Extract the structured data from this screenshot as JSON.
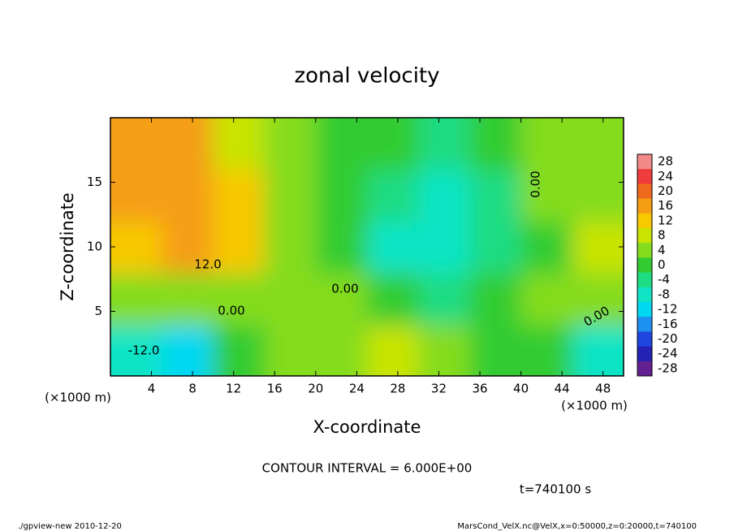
{
  "chart_data": {
    "type": "heatmap",
    "title": "zonal velocity",
    "x_label": "X-coordinate",
    "y_label": "Z-coordinate",
    "x_unit": "(×1000 m)",
    "x": [
      2.5,
      7.5,
      12.5,
      17.5,
      22.5,
      27.5,
      32.5,
      37.5,
      42.5,
      47.5
    ],
    "y": [
      2,
      6,
      10,
      14,
      18
    ],
    "z": [
      [
        -10,
        -14,
        0,
        2,
        2,
        8,
        2,
        0,
        -2,
        -8
      ],
      [
        2,
        4,
        4,
        2,
        2,
        -2,
        -4,
        0,
        2,
        2
      ],
      [
        12,
        16,
        12,
        4,
        0,
        -8,
        -8,
        -4,
        0,
        6
      ],
      [
        14,
        16,
        12,
        4,
        0,
        -6,
        -8,
        -4,
        2,
        4
      ],
      [
        14,
        14,
        8,
        4,
        0,
        -2,
        -4,
        -2,
        2,
        4
      ]
    ],
    "xlim": [
      0,
      50
    ],
    "ylim": [
      0,
      20
    ],
    "xticks": [
      4,
      8,
      12,
      16,
      20,
      24,
      28,
      32,
      36,
      40,
      44,
      48
    ],
    "yticks": [
      5,
      10,
      15
    ],
    "colorbar": {
      "levels": [
        28,
        24,
        20,
        16,
        12,
        8,
        4,
        0,
        -4,
        -8,
        -12,
        -16,
        -20,
        -24,
        -28
      ],
      "colors": [
        "#f28a8a",
        "#f03c3c",
        "#f06a1e",
        "#f59e14",
        "#f8c800",
        "#c8e400",
        "#84dc1e",
        "#32cc32",
        "#1edc82",
        "#10e4c4",
        "#00d8f2",
        "#1e90f0",
        "#2046e0",
        "#2222b4",
        "#642090"
      ]
    },
    "contour_labels": [
      "12.0",
      "0.00",
      "0.00",
      "0.00",
      "0.00",
      "-12.0"
    ],
    "contour_interval": "CONTOUR INTERVAL = 6.000E+00",
    "time_label": "t=740100 s",
    "footer_left": "./gpview-new  2010-12-20",
    "footer_right": "MarsCond_VelX.nc@VelX,x=0:50000,z=0:20000,t=740100"
  }
}
